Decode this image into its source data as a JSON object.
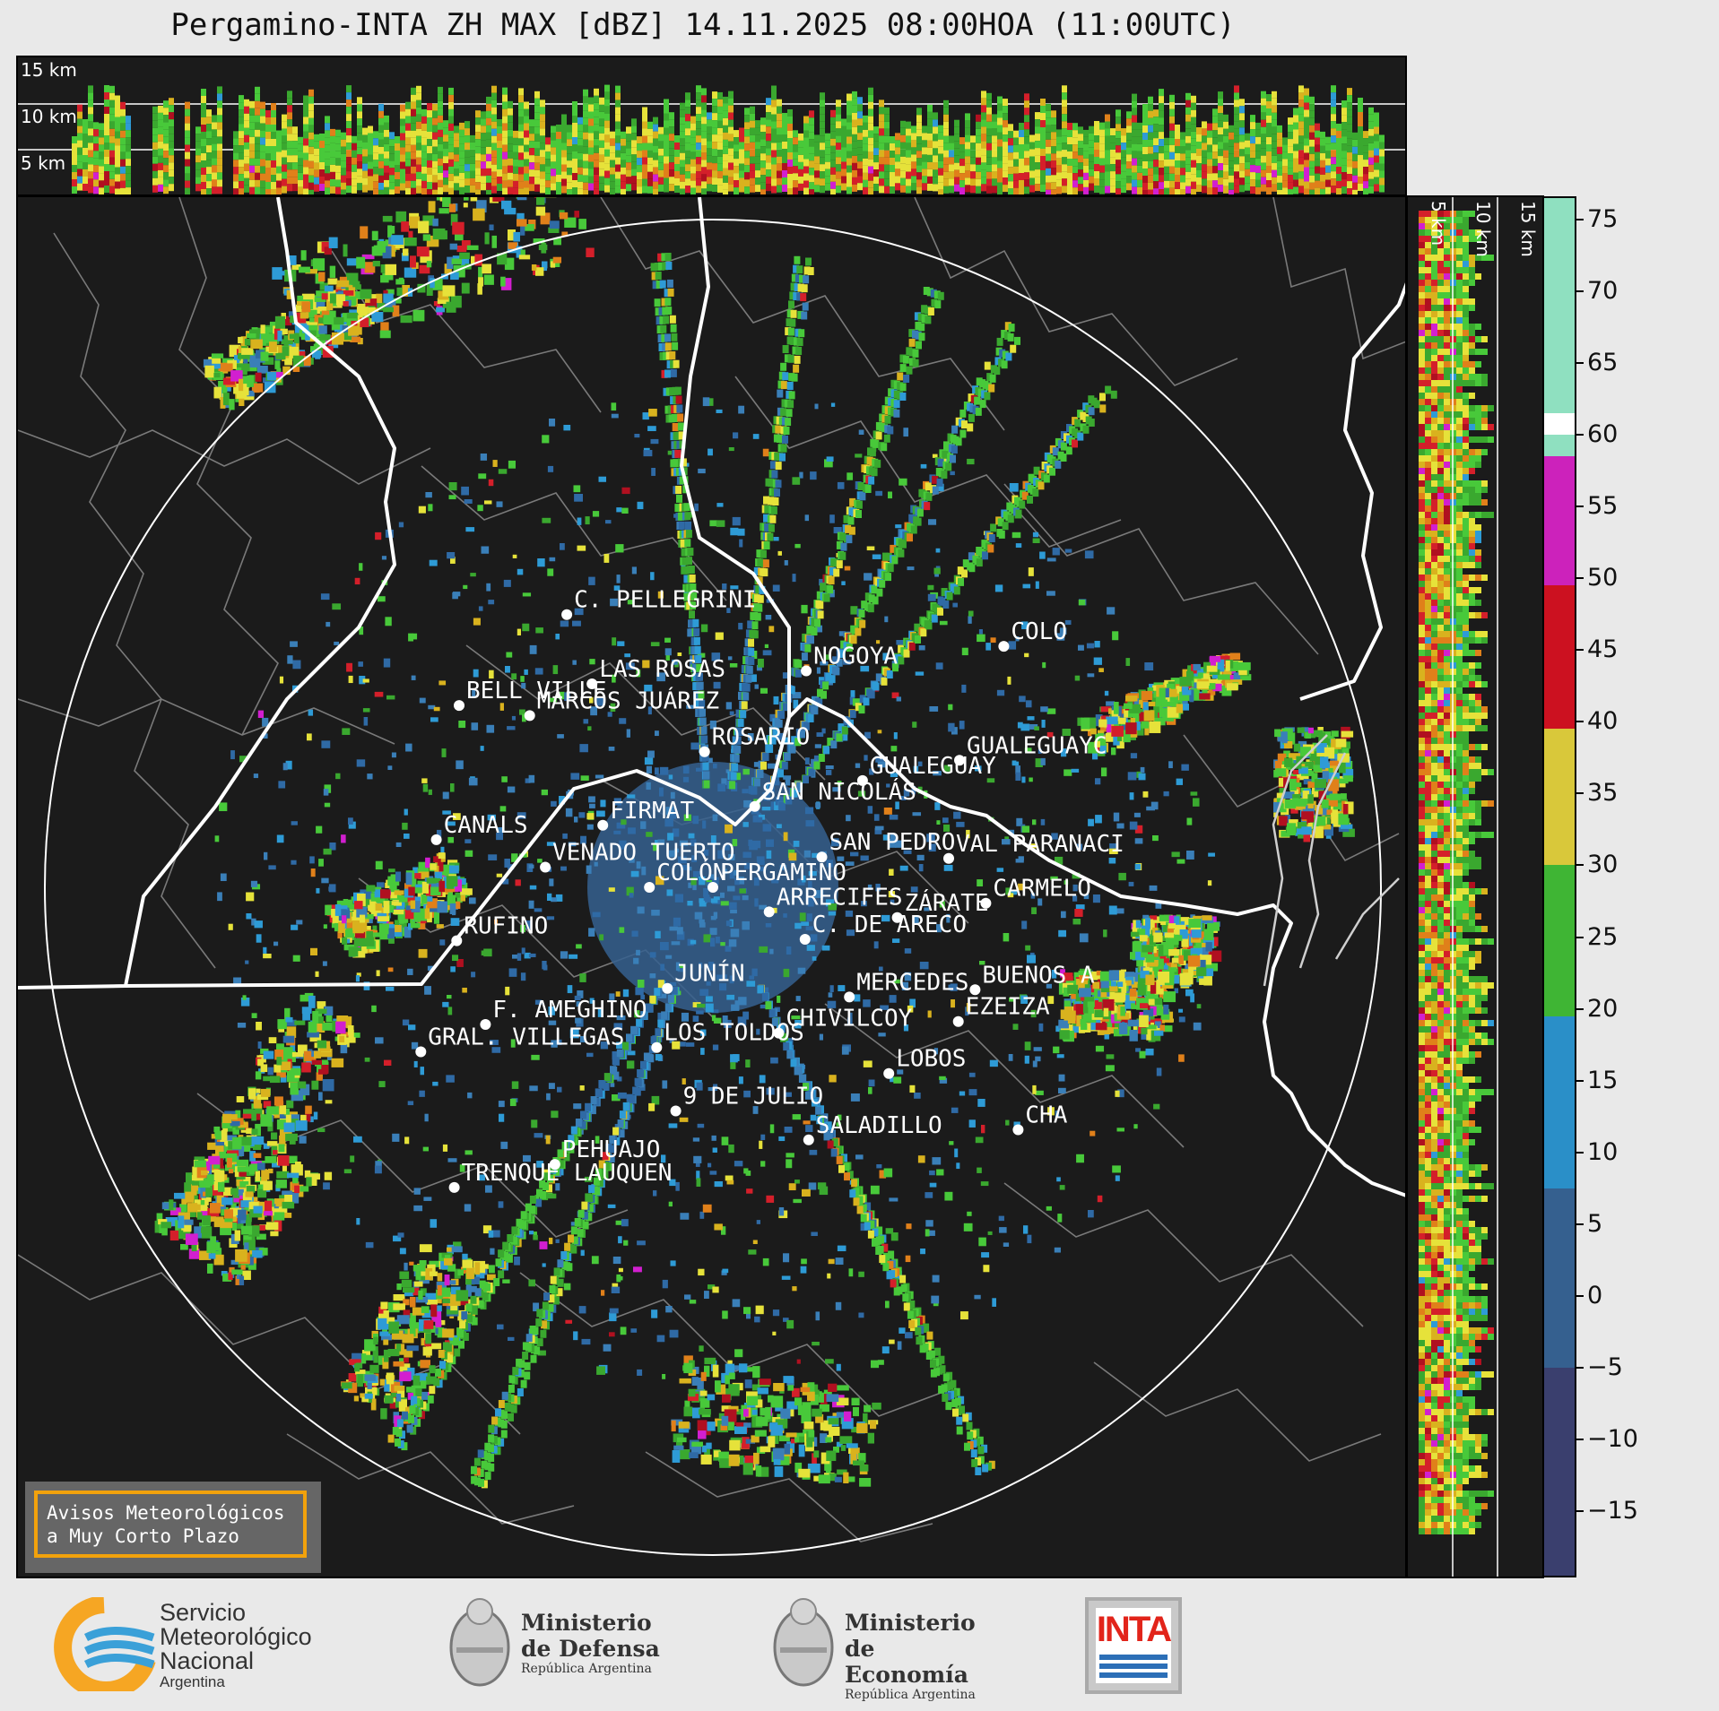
{
  "title": "Pergamino-INTA ZH MAX [dBZ] 14.11.2025 08:00HOA (11:00UTC)",
  "top_panel": {
    "km_labels": [
      "15 km",
      "10 km",
      "5 km"
    ]
  },
  "side_panel": {
    "km_labels": [
      "5 km",
      "10 km",
      "15 km"
    ]
  },
  "colorbar": {
    "ticks": [
      "75",
      "70",
      "65",
      "60",
      "55",
      "50",
      "45",
      "40",
      "35",
      "30",
      "25",
      "20",
      "15",
      "10",
      "5",
      "0",
      "−5",
      "−10",
      "−15"
    ],
    "tick_values": [
      75,
      70,
      65,
      60,
      55,
      50,
      45,
      40,
      35,
      30,
      25,
      20,
      15,
      10,
      5,
      0,
      -5,
      -10,
      -15
    ],
    "range": [
      -19.5,
      76.5
    ],
    "stops": [
      {
        "from": 58.5,
        "to": 76.5,
        "color": "#8fe0c0"
      },
      {
        "from": 60,
        "to": 61.5,
        "color": "#ffffff"
      },
      {
        "from": 49.5,
        "to": 58.5,
        "color": "#cc22bb"
      },
      {
        "from": 39.5,
        "to": 49.5,
        "color": "#cc1120"
      },
      {
        "from": 30,
        "to": 39.5,
        "color": "#d9c83a"
      },
      {
        "from": 19.5,
        "to": 30,
        "color": "#3fb534"
      },
      {
        "from": 7.5,
        "to": 19.5,
        "color": "#2a8fc8"
      },
      {
        "from": -5,
        "to": 7.5,
        "color": "#35608f"
      },
      {
        "from": -19.5,
        "to": -5,
        "color": "#3a3f6e"
      }
    ]
  },
  "map": {
    "cities": [
      {
        "name": "C. PELLEGRINI",
        "lon": -61.79,
        "lat": -32.0
      },
      {
        "name": "LAS ROSAS",
        "lon": -61.58,
        "lat": -32.48
      },
      {
        "name": "BELL VILLE",
        "lon": -62.69,
        "lat": -32.63
      },
      {
        "name": "MARCOS JUÁREZ",
        "lon": -62.1,
        "lat": -32.7
      },
      {
        "name": "NOGOYA",
        "lon": -59.79,
        "lat": -32.39
      },
      {
        "name": "COLO",
        "lon": -58.14,
        "lat": -32.22
      },
      {
        "name": "ROSARIO",
        "lon": -60.64,
        "lat": -32.95
      },
      {
        "name": "GUALEGUAYC",
        "lon": -58.51,
        "lat": -33.01
      },
      {
        "name": "GUALEGUAY",
        "lon": -59.32,
        "lat": -33.15
      },
      {
        "name": "SAN NICOLÁS",
        "lon": -60.22,
        "lat": -33.33
      },
      {
        "name": "FIRMAT",
        "lon": -61.49,
        "lat": -33.46
      },
      {
        "name": "CANALS",
        "lon": -62.88,
        "lat": -33.56
      },
      {
        "name": "SAN PEDRO",
        "lon": -59.66,
        "lat": -33.68
      },
      {
        "name": "VENADO TUERTO",
        "lon": -61.97,
        "lat": -33.75
      },
      {
        "name": "VAL PARANACI",
        "lon": -58.6,
        "lat": -33.69
      },
      {
        "name": "COLÓN",
        "lon": -61.1,
        "lat": -33.89
      },
      {
        "name": "PERGAMINO",
        "lon": -60.57,
        "lat": -33.89
      },
      {
        "name": "CARMELO",
        "lon": -58.29,
        "lat": -34.0
      },
      {
        "name": "ARRECIFES",
        "lon": -60.1,
        "lat": -34.06
      },
      {
        "name": "ZÁRATE",
        "lon": -59.03,
        "lat": -34.1
      },
      {
        "name": "RUFINO",
        "lon": -62.71,
        "lat": -34.26
      },
      {
        "name": "C. DE ARECO",
        "lon": -59.8,
        "lat": -34.25
      },
      {
        "name": "JUNÍN",
        "lon": -60.95,
        "lat": -34.59
      },
      {
        "name": "MERCEDES",
        "lon": -59.43,
        "lat": -34.65
      },
      {
        "name": "BUENOS A",
        "lon": -58.38,
        "lat": -34.6
      },
      {
        "name": "F. AMEGHINO",
        "lon": -62.47,
        "lat": -34.84
      },
      {
        "name": "EZEIZA",
        "lon": -58.52,
        "lat": -34.82
      },
      {
        "name": "CHIVILCOY",
        "lon": -60.02,
        "lat": -34.9
      },
      {
        "name": "GRAL. VILLEGAS",
        "lon": -63.01,
        "lat": -35.03
      },
      {
        "name": "LOS TOLDOS",
        "lon": -61.04,
        "lat": -35.0
      },
      {
        "name": "LOBOS",
        "lon": -59.1,
        "lat": -35.18
      },
      {
        "name": "9 DE JULIO",
        "lon": -60.88,
        "lat": -35.44
      },
      {
        "name": "CHA",
        "lon": -58.02,
        "lat": -35.57
      },
      {
        "name": "SALADILLO",
        "lon": -59.77,
        "lat": -35.64
      },
      {
        "name": "PEHUAJO",
        "lon": -61.89,
        "lat": -35.81
      },
      {
        "name": "TRENQUE LAUQUEN",
        "lon": -62.73,
        "lat": -35.97
      }
    ]
  },
  "warning_box": {
    "line1": "Avisos Meteorológicos",
    "line2": "a Muy Corto Plazo"
  },
  "logos": {
    "smn": {
      "line1": "Servicio",
      "line2": "Meteorológico",
      "line3": "Nacional",
      "line4": "Argentina"
    },
    "defensa": {
      "line1": "Ministerio",
      "line2": "de Defensa",
      "line3": "República Argentina"
    },
    "economia": {
      "line1": "Ministerio",
      "line2": "de Economía",
      "line3": "República Argentina"
    },
    "inta": {
      "text": "INTA"
    }
  },
  "colors": {
    "panel_bg": "#1b1b1b",
    "warning_border": "#f2a20c"
  }
}
